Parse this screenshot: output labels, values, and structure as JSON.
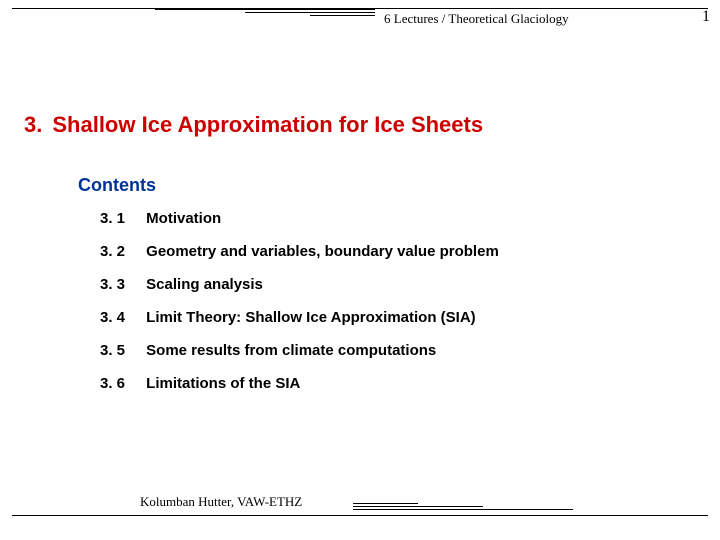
{
  "header": {
    "course": "6 Lectures / Theoretical Glaciology",
    "page_number": "1"
  },
  "title": {
    "number": "3.",
    "text": "Shallow Ice Approximation for Ice Sheets"
  },
  "contents": {
    "heading": "Contents",
    "items": [
      {
        "num": "3. 1",
        "label": "Motivation"
      },
      {
        "num": "3. 2",
        "label": "Geometry and variables, boundary value problem"
      },
      {
        "num": "3. 3",
        "label": "Scaling analysis"
      },
      {
        "num": "3. 4",
        "label": "Limit Theory: Shallow Ice Approximation (SIA)"
      },
      {
        "num": "3. 5",
        "label": "Some results from climate computations"
      },
      {
        "num": "3. 6",
        "label": "Limitations of the SIA"
      }
    ]
  },
  "footer": {
    "author": "Kolumban Hutter, VAW-ETHZ"
  },
  "colors": {
    "title_color": "#cc0000",
    "contents_heading_color": "#003399",
    "text_color": "#000000",
    "background": "#ffffff"
  }
}
